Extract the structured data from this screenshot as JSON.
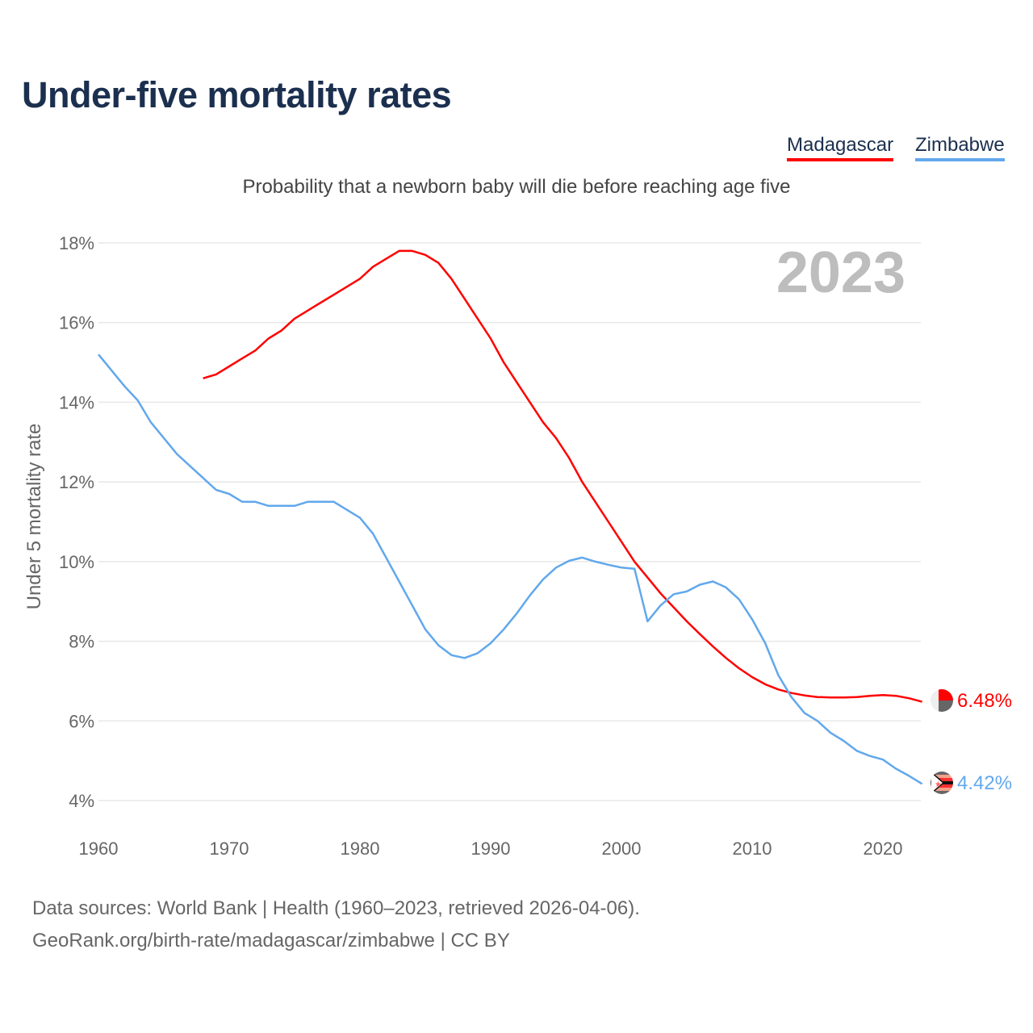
{
  "title": "Under-five mortality rates",
  "subtitle": "Probability that a newborn baby will die before reaching age five",
  "footer": {
    "line1": "Data sources: World Bank | Health (1960–2023, retrieved 2026-04-06).",
    "line2": "GeoRank.org/birth-rate/madagascar/zimbabwe | CC BY"
  },
  "chart_data": {
    "type": "line",
    "title": "Under-five mortality rates",
    "subtitle": "Probability that a newborn baby will die before reaching age five",
    "xlabel": "",
    "ylabel": "Under 5 mortality rate",
    "year_label": "2023",
    "xlim": [
      1960,
      2023
    ],
    "ylim": [
      4,
      18
    ],
    "xticks": [
      1960,
      1970,
      1980,
      1990,
      2000,
      2010,
      2020
    ],
    "yticks": [
      4,
      6,
      8,
      10,
      12,
      14,
      16,
      18
    ],
    "ytick_labels": [
      "4%",
      "6%",
      "8%",
      "10%",
      "12%",
      "14%",
      "16%",
      "18%"
    ],
    "grid": true,
    "legend_position": "top-right",
    "series": [
      {
        "name": "Madagascar",
        "color": "#ff0000",
        "end_label": "6.48%",
        "start_year": 1968,
        "values": [
          14.6,
          14.7,
          14.9,
          15.1,
          15.3,
          15.6,
          15.8,
          16.1,
          16.3,
          16.5,
          16.7,
          16.9,
          17.1,
          17.4,
          17.6,
          17.8,
          17.8,
          17.7,
          17.5,
          17.1,
          16.6,
          16.1,
          15.6,
          15.0,
          14.5,
          14.0,
          13.5,
          13.1,
          12.6,
          12.0,
          11.5,
          11.0,
          10.5,
          10.0,
          9.6,
          9.2,
          8.85,
          8.5,
          8.18,
          7.87,
          7.58,
          7.32,
          7.1,
          6.92,
          6.79,
          6.7,
          6.64,
          6.6,
          6.59,
          6.59,
          6.6,
          6.63,
          6.65,
          6.63,
          6.57,
          6.48
        ]
      },
      {
        "name": "Zimbabwe",
        "color": "#62a8ec",
        "end_label": "4.42%",
        "start_year": 1960,
        "values": [
          15.2,
          14.8,
          14.4,
          14.05,
          13.5,
          13.1,
          12.7,
          12.4,
          12.1,
          11.8,
          11.7,
          11.5,
          11.5,
          11.4,
          11.4,
          11.4,
          11.5,
          11.5,
          11.5,
          11.3,
          11.1,
          10.7,
          10.1,
          9.5,
          8.9,
          8.3,
          7.9,
          7.65,
          7.58,
          7.7,
          7.95,
          8.3,
          8.7,
          9.15,
          9.55,
          9.85,
          10.02,
          10.1,
          10.0,
          9.92,
          9.85,
          9.82,
          8.5,
          8.9,
          9.18,
          9.25,
          9.42,
          9.5,
          9.35,
          9.05,
          8.55,
          7.95,
          7.15,
          6.6,
          6.2,
          6.0,
          5.7,
          5.5,
          5.25,
          5.12,
          5.03,
          4.8,
          4.62,
          4.42
        ]
      }
    ]
  }
}
